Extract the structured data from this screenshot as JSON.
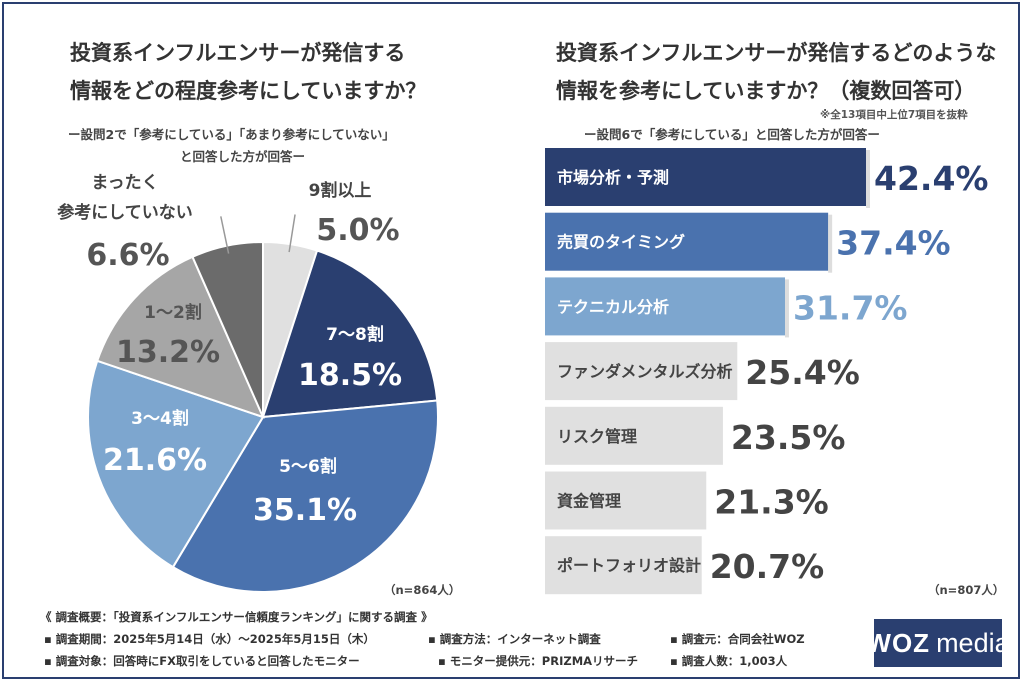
{
  "colors": {
    "navy": "#2a3f70",
    "blue": "#4a72ae",
    "light_blue": "#7da6cf",
    "light_gray": "#d9d9d9",
    "mid_gray": "#a6a6a6",
    "dark_gray": "#6b6b6b"
  },
  "chart_data": [
    {
      "type": "pie",
      "title": [
        "投資系インフルエンサーが発信する",
        "情報をどの程度参考にしていますか？"
      ],
      "subtitle": [
        "ー設問2で「参考にしている」「あまり参考にしていない」",
        "と回答した方が回答ー"
      ],
      "slices": [
        {
          "label": "9割以上",
          "value": 5.0,
          "value_label": "5.0%",
          "color": "#e0e0e0"
        },
        {
          "label": "7〜8割",
          "value": 18.5,
          "value_label": "18.5%",
          "color": "#2a3f70"
        },
        {
          "label": "5〜6割",
          "value": 35.1,
          "value_label": "35.1%",
          "color": "#4a72ae"
        },
        {
          "label": "3〜4割",
          "value": 21.6,
          "value_label": "21.6%",
          "color": "#7da6cf"
        },
        {
          "label": "1〜2割",
          "value": 13.2,
          "value_label": "13.2%",
          "color": "#a6a6a6"
        },
        {
          "label": "まったく参考にしていない",
          "label_lines": [
            "まったく",
            "参考にしていない"
          ],
          "value": 6.6,
          "value_label": "6.6%",
          "color": "#6b6b6b"
        }
      ],
      "n_label": "（n=864人）"
    },
    {
      "type": "bar",
      "title": [
        "投資系インフルエンサーが発信するどのような",
        "情報を参考にしていますか？（複数回答可）"
      ],
      "note": "※全13項目中上位7項目を抜粋",
      "subtitle": "ー設問6で「参考にしている」と回答した方が回答ー",
      "categories": [
        "市場分析・予測",
        "売買のタイミング",
        "テクニカル分析",
        "ファンダメンタルズ分析",
        "リスク管理",
        "資金管理",
        "ポートフォリオ設計"
      ],
      "values": [
        42.4,
        37.4,
        31.7,
        25.4,
        23.5,
        21.3,
        20.7
      ],
      "value_labels": [
        "42.4%",
        "37.4%",
        "31.7%",
        "25.4%",
        "23.5%",
        "21.3%",
        "20.7%"
      ],
      "bar_colors": [
        "#2a3f70",
        "#4a72ae",
        "#7da6cf",
        "#e0e0e0",
        "#e0e0e0",
        "#e0e0e0",
        "#e0e0e0"
      ],
      "label_colors": [
        "#ffffff",
        "#ffffff",
        "#ffffff",
        "#444444",
        "#444444",
        "#444444",
        "#444444"
      ],
      "value_colors": [
        "#2a3f70",
        "#4a72ae",
        "#7da6cf",
        "#444444",
        "#444444",
        "#444444",
        "#444444"
      ],
      "n_label": "（n=807人）"
    }
  ],
  "footer": {
    "heading": "《 調査概要：「投資系インフルエンサー信頼度ランキング」に関する調査 》",
    "row1": [
      "▪ 調査期間：2025年5月14日（水）〜2025年5月15日（木）",
      "▪ 調査方法：インターネット調査",
      "▪ 調査元：合同会社WOZ"
    ],
    "row2": [
      "▪ 調査対象：回答時にFX取引をしていると回答したモニター",
      "▪ モニター提供元：PRIZMAリサーチ",
      "▪ 調査人数：1,003人"
    ]
  },
  "logo": {
    "left": "WOZ",
    "right": "media"
  }
}
